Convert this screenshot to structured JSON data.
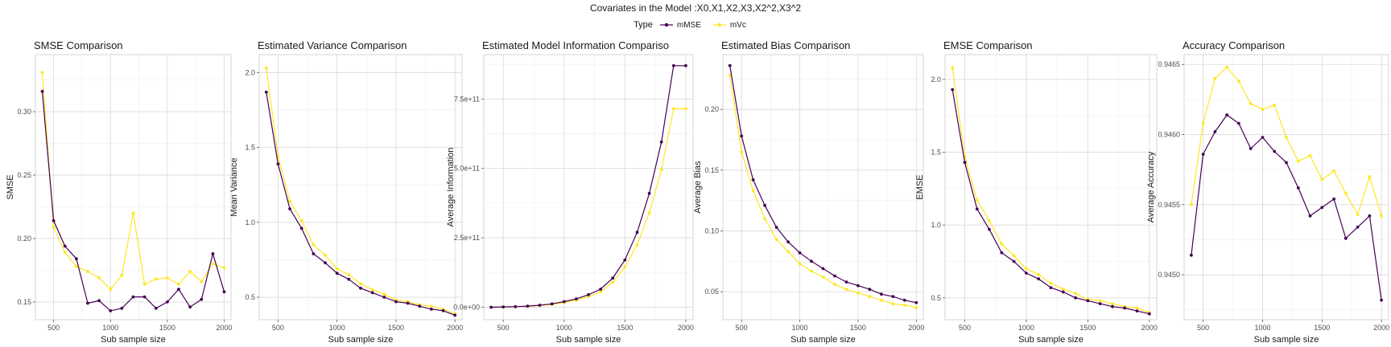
{
  "title": "Covariates in the Model :X0,X1,X2,X3,X2^2,X3^2",
  "legend": {
    "title": "Type",
    "items": [
      {
        "label": "mMSE",
        "color": "#440154"
      },
      {
        "label": "mVc",
        "color": "#FDE725"
      }
    ]
  },
  "chart_data": [
    {
      "type": "line",
      "title": "SMSE Comparison",
      "xlabel": "Sub sample size",
      "ylabel": "SMSE",
      "x": [
        400,
        500,
        600,
        700,
        800,
        900,
        1000,
        1100,
        1200,
        1300,
        1400,
        1500,
        1600,
        1700,
        1800,
        1900,
        2000
      ],
      "xlim": [
        340,
        2060
      ],
      "ylim": [
        0.136,
        0.345
      ],
      "xticks": [
        500,
        1000,
        1500,
        2000
      ],
      "yticks": [
        0.15,
        0.2,
        0.25,
        0.3
      ],
      "ytick_labels": [
        "0.15",
        "0.20",
        "0.25",
        "0.30"
      ],
      "grid": true,
      "series": [
        {
          "name": "mMSE",
          "color": "#440154",
          "values": [
            0.316,
            0.214,
            0.194,
            0.184,
            0.149,
            0.151,
            0.143,
            0.145,
            0.154,
            0.154,
            0.145,
            0.15,
            0.16,
            0.146,
            0.152,
            0.188,
            0.158
          ]
        },
        {
          "name": "mVc",
          "color": "#FDE725",
          "values": [
            0.331,
            0.209,
            0.189,
            0.178,
            0.174,
            0.169,
            0.16,
            0.171,
            0.22,
            0.164,
            0.168,
            0.169,
            0.164,
            0.174,
            0.166,
            0.18,
            0.177
          ]
        }
      ]
    },
    {
      "type": "line",
      "title": "Estimated Variance Comparison",
      "xlabel": "Sub sample size",
      "ylabel": "Mean Variance",
      "x": [
        400,
        500,
        600,
        700,
        800,
        900,
        1000,
        1100,
        1200,
        1300,
        1400,
        1500,
        1600,
        1700,
        1800,
        1900,
        2000
      ],
      "xlim": [
        340,
        2060
      ],
      "ylim": [
        0.35,
        2.12
      ],
      "xticks": [
        500,
        1000,
        1500,
        2000
      ],
      "yticks": [
        0.5,
        1.0,
        1.5,
        2.0
      ],
      "ytick_labels": [
        "0.5",
        "1.0",
        "1.5",
        "2.0"
      ],
      "grid": true,
      "series": [
        {
          "name": "mMSE",
          "color": "#440154",
          "values": [
            1.87,
            1.39,
            1.09,
            0.96,
            0.79,
            0.73,
            0.66,
            0.62,
            0.56,
            0.53,
            0.5,
            0.47,
            0.46,
            0.44,
            0.42,
            0.41,
            0.38
          ]
        },
        {
          "name": "mVc",
          "color": "#FDE725",
          "values": [
            2.03,
            1.44,
            1.14,
            1.01,
            0.85,
            0.78,
            0.69,
            0.65,
            0.59,
            0.55,
            0.52,
            0.48,
            0.47,
            0.45,
            0.44,
            0.42,
            0.39
          ]
        }
      ]
    },
    {
      "type": "line",
      "title": "Estimated Model Information Compariso",
      "xlabel": "Sub sample size",
      "ylabel": "Average Information",
      "x": [
        400,
        500,
        600,
        700,
        800,
        900,
        1000,
        1100,
        1200,
        1300,
        1400,
        1500,
        1600,
        1700,
        1800,
        1900,
        2000
      ],
      "xlim": [
        340,
        2060
      ],
      "ylim": [
        -45000000000.0,
        910000000000.0
      ],
      "xticks": [
        500,
        1000,
        1500,
        2000
      ],
      "yticks": [
        0,
        250000000000.0,
        500000000000.0,
        750000000000.0
      ],
      "ytick_labels": [
        "0.0e+00",
        "2.5e+11",
        "5.0e+11",
        "7.5e+11"
      ],
      "grid": true,
      "series": [
        {
          "name": "mMSE",
          "color": "#440154",
          "values": [
            0.0,
            1000000000.0,
            2000000000.0,
            4000000000.0,
            7000000000.0,
            12000000000.0,
            20000000000.0,
            30000000000.0,
            45000000000.0,
            65000000000.0,
            105000000000.0,
            170000000000.0,
            270000000000.0,
            410000000000.0,
            595000000000.0,
            870000000000.0,
            870000000000.0
          ]
        },
        {
          "name": "mVc",
          "color": "#FDE725",
          "values": [
            0.0,
            1000000000.0,
            2000000000.0,
            3000000000.0,
            6000000000.0,
            10000000000.0,
            17000000000.0,
            26000000000.0,
            38000000000.0,
            55000000000.0,
            90000000000.0,
            145000000000.0,
            225000000000.0,
            340000000000.0,
            495000000000.0,
            715000000000.0,
            715000000000.0
          ]
        }
      ]
    },
    {
      "type": "line",
      "title": "Estimated Bias Comparison",
      "xlabel": "Sub sample size",
      "ylabel": "Average Bias",
      "x": [
        400,
        500,
        600,
        700,
        800,
        900,
        1000,
        1100,
        1200,
        1300,
        1400,
        1500,
        1600,
        1700,
        1800,
        1900,
        2000
      ],
      "xlim": [
        340,
        2060
      ],
      "ylim": [
        0.027,
        0.245
      ],
      "xticks": [
        500,
        1000,
        1500,
        2000
      ],
      "yticks": [
        0.05,
        0.1,
        0.15,
        0.2
      ],
      "ytick_labels": [
        "0.05",
        "0.10",
        "0.15",
        "0.20"
      ],
      "grid": true,
      "series": [
        {
          "name": "mMSE",
          "color": "#440154",
          "values": [
            0.236,
            0.178,
            0.142,
            0.121,
            0.103,
            0.091,
            0.082,
            0.075,
            0.069,
            0.063,
            0.058,
            0.055,
            0.052,
            0.048,
            0.046,
            0.043,
            0.041
          ]
        },
        {
          "name": "mVc",
          "color": "#FDE725",
          "values": [
            0.228,
            0.165,
            0.133,
            0.11,
            0.093,
            0.083,
            0.073,
            0.067,
            0.062,
            0.056,
            0.052,
            0.049,
            0.046,
            0.043,
            0.04,
            0.039,
            0.037
          ]
        }
      ]
    },
    {
      "type": "line",
      "title": "EMSE Comparison",
      "xlabel": "Sub sample size",
      "ylabel": "EMSE",
      "x": [
        400,
        500,
        600,
        700,
        800,
        900,
        1000,
        1100,
        1200,
        1300,
        1400,
        1500,
        1600,
        1700,
        1800,
        1900,
        2000
      ],
      "xlim": [
        340,
        2060
      ],
      "ylim": [
        0.35,
        2.17
      ],
      "xticks": [
        500,
        1000,
        1500,
        2000
      ],
      "yticks": [
        0.5,
        1.0,
        1.5,
        2.0
      ],
      "ytick_labels": [
        "0.5",
        "1.0",
        "1.5",
        "2.0"
      ],
      "grid": true,
      "series": [
        {
          "name": "mMSE",
          "color": "#440154",
          "values": [
            1.93,
            1.43,
            1.11,
            0.97,
            0.81,
            0.75,
            0.67,
            0.63,
            0.57,
            0.54,
            0.5,
            0.48,
            0.46,
            0.44,
            0.43,
            0.41,
            0.39
          ]
        },
        {
          "name": "mVc",
          "color": "#FDE725",
          "values": [
            2.08,
            1.47,
            1.17,
            1.03,
            0.87,
            0.79,
            0.7,
            0.66,
            0.6,
            0.56,
            0.53,
            0.49,
            0.48,
            0.46,
            0.44,
            0.43,
            0.4
          ]
        }
      ]
    },
    {
      "type": "line",
      "title": "Accuracy Comparison",
      "xlabel": "Sub sample size",
      "ylabel": "Average Accuracy",
      "x": [
        400,
        500,
        600,
        700,
        800,
        900,
        1000,
        1100,
        1200,
        1300,
        1400,
        1500,
        1600,
        1700,
        1800,
        1900,
        2000
      ],
      "xlim": [
        340,
        2060
      ],
      "ylim": [
        0.94468,
        0.94657
      ],
      "xticks": [
        500,
        1000,
        1500,
        2000
      ],
      "yticks": [
        0.945,
        0.9455,
        0.946,
        0.9465
      ],
      "ytick_labels": [
        "0.9450",
        "0.9455",
        "0.9460",
        "0.9465"
      ],
      "grid": true,
      "series": [
        {
          "name": "mMSE",
          "color": "#440154",
          "values": [
            0.94514,
            0.94586,
            0.94602,
            0.94614,
            0.94608,
            0.9459,
            0.94598,
            0.94588,
            0.9458,
            0.94562,
            0.94542,
            0.94548,
            0.94554,
            0.94526,
            0.94534,
            0.94542,
            0.94482
          ]
        },
        {
          "name": "mVc",
          "color": "#FDE725",
          "values": [
            0.9455,
            0.94608,
            0.9464,
            0.94648,
            0.94638,
            0.94622,
            0.94618,
            0.94621,
            0.94598,
            0.94581,
            0.94585,
            0.94568,
            0.94574,
            0.94558,
            0.94543,
            0.9457,
            0.94542
          ]
        }
      ]
    }
  ]
}
